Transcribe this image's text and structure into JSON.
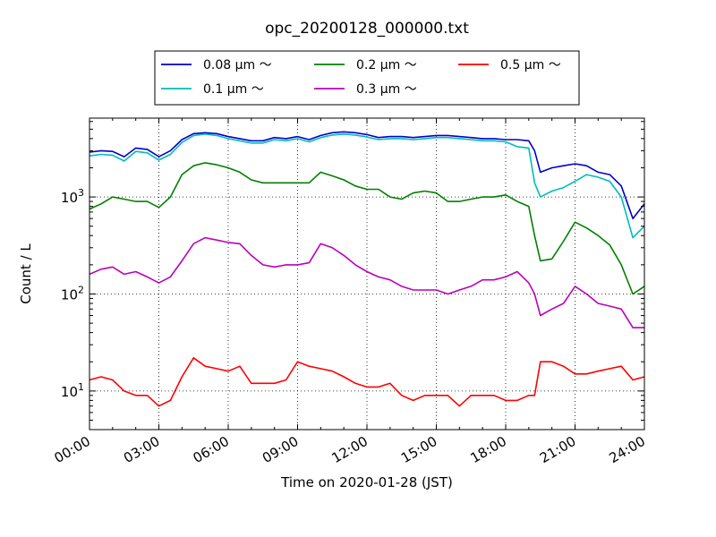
{
  "chart_data": {
    "type": "line",
    "title": "opc_20200128_000000.txt",
    "xlabel": "Time on 2020-01-28 (JST)",
    "ylabel": "Count / L",
    "xlim": [
      "00:00",
      "24:00"
    ],
    "ylim": [
      4,
      6500
    ],
    "yscale": "log",
    "grid": true,
    "legend_position": "top-center",
    "x_ticks": [
      "00:00",
      "03:00",
      "06:00",
      "09:00",
      "12:00",
      "15:00",
      "18:00",
      "21:00",
      "24:00"
    ],
    "y_ticks": [
      {
        "value": 10,
        "label": "10",
        "exp": "1"
      },
      {
        "value": 100,
        "label": "10",
        "exp": "2"
      },
      {
        "value": 1000,
        "label": "10",
        "exp": "3"
      }
    ],
    "x": [
      "00:00",
      "00:30",
      "01:00",
      "01:30",
      "02:00",
      "02:30",
      "03:00",
      "03:30",
      "04:00",
      "04:30",
      "05:00",
      "05:30",
      "06:00",
      "06:30",
      "07:00",
      "07:30",
      "08:00",
      "08:30",
      "09:00",
      "09:30",
      "10:00",
      "10:30",
      "11:00",
      "11:30",
      "12:00",
      "12:30",
      "13:00",
      "13:30",
      "14:00",
      "14:30",
      "15:00",
      "15:30",
      "16:00",
      "16:30",
      "17:00",
      "17:30",
      "18:00",
      "18:30",
      "19:00",
      "19:15",
      "19:30",
      "20:00",
      "20:30",
      "21:00",
      "21:30",
      "22:00",
      "22:30",
      "23:00",
      "23:30",
      "24:00"
    ],
    "series": [
      {
        "name": "0.08 μm ～",
        "color": "#0000cc",
        "values": [
          2900,
          3000,
          2950,
          2600,
          3200,
          3100,
          2600,
          3000,
          3900,
          4500,
          4600,
          4500,
          4200,
          4000,
          3800,
          3800,
          4100,
          4000,
          4200,
          3900,
          4300,
          4600,
          4700,
          4600,
          4400,
          4100,
          4200,
          4200,
          4100,
          4200,
          4300,
          4300,
          4200,
          4100,
          4000,
          4000,
          3900,
          3900,
          3800,
          3000,
          1800,
          2000,
          2100,
          2200,
          2100,
          1800,
          1700,
          1300,
          600,
          850
        ]
      },
      {
        "name": "0.1 μm ～",
        "color": "#00bbbb",
        "values": [
          2650,
          2750,
          2700,
          2350,
          2950,
          2850,
          2400,
          2750,
          3650,
          4300,
          4450,
          4300,
          4000,
          3800,
          3600,
          3600,
          3900,
          3800,
          4000,
          3700,
          4100,
          4350,
          4450,
          4350,
          4150,
          3900,
          4000,
          4000,
          3900,
          4000,
          4100,
          4100,
          4000,
          3900,
          3800,
          3800,
          3700,
          3300,
          3200,
          1400,
          1000,
          1150,
          1250,
          1450,
          1700,
          1600,
          1450,
          1000,
          380,
          500
        ]
      },
      {
        "name": "0.2 μm ～",
        "color": "#008000",
        "values": [
          750,
          850,
          1000,
          950,
          900,
          900,
          780,
          1000,
          1700,
          2100,
          2250,
          2150,
          2000,
          1800,
          1500,
          1400,
          1400,
          1400,
          1400,
          1400,
          1800,
          1650,
          1500,
          1300,
          1200,
          1200,
          1000,
          950,
          1100,
          1150,
          1100,
          900,
          900,
          950,
          1000,
          1000,
          1050,
          900,
          800,
          400,
          220,
          230,
          350,
          550,
          480,
          400,
          320,
          200,
          100,
          120
        ]
      },
      {
        "name": "0.3 μm ～",
        "color": "#bb00bb",
        "values": [
          160,
          180,
          190,
          160,
          170,
          150,
          130,
          150,
          220,
          330,
          380,
          360,
          340,
          330,
          250,
          200,
          190,
          200,
          200,
          210,
          330,
          300,
          250,
          200,
          170,
          150,
          140,
          120,
          110,
          110,
          110,
          100,
          110,
          120,
          140,
          140,
          150,
          170,
          130,
          100,
          60,
          70,
          80,
          120,
          100,
          80,
          75,
          70,
          45,
          45
        ]
      },
      {
        "name": "0.5 μm ～",
        "color": "#ff0000",
        "values": [
          13,
          14,
          13,
          10,
          9,
          9,
          7,
          8,
          14,
          22,
          18,
          17,
          16,
          18,
          12,
          12,
          12,
          13,
          20,
          18,
          17,
          16,
          14,
          12,
          11,
          11,
          12,
          9,
          8,
          9,
          9,
          9,
          7,
          9,
          9,
          9,
          8,
          8,
          9,
          9,
          20,
          20,
          18,
          15,
          15,
          16,
          17,
          18,
          13,
          14
        ]
      }
    ]
  }
}
